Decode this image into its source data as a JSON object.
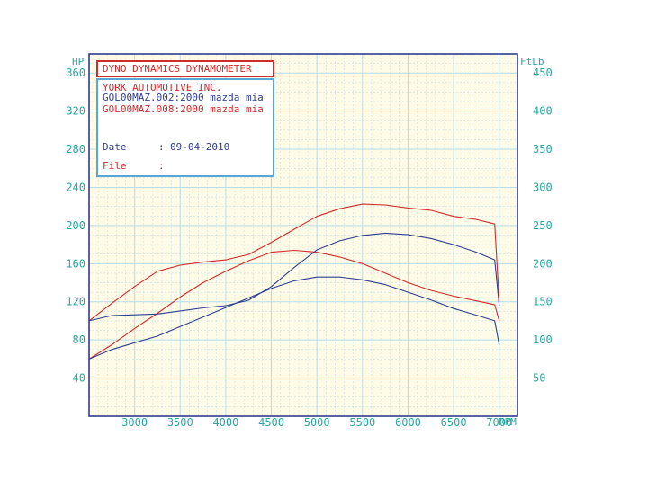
{
  "colors": {
    "background": "#ffffff",
    "plot_fill": "#fffbe6",
    "grid": "#b7dde8",
    "axis_text": "#2aa7a0",
    "frame": "#2e3d8f",
    "red": "#d22b2b",
    "blue": "#2e3d8f",
    "infobox_border": "#56a7d8"
  },
  "title_box": {
    "text": "DYNO DYNAMICS DYNAMOMETER"
  },
  "info_box": {
    "company": "YORK AUTOMOTIVE INC.",
    "run1": "GOL00MAZ.002:2000 mazda mia",
    "run2": "GOL00MAZ.008:2000 mazda mia",
    "date_label": "Date",
    "date_sep": ":",
    "date_value": "09-04-2010",
    "file_label": "File",
    "file_sep": ":"
  },
  "chart_data": {
    "type": "line",
    "x_unit_label": "RPM",
    "y_left_label": "HP",
    "y_right_label": "FtLb",
    "xlim": [
      2500,
      7200
    ],
    "y_left_lim": [
      0,
      380
    ],
    "y_right_lim": [
      0,
      475
    ],
    "x_ticks": [
      3000,
      3500,
      4000,
      4500,
      5000,
      5500,
      6000,
      6500,
      7000
    ],
    "y_left_ticks": [
      40,
      80,
      120,
      160,
      200,
      240,
      280,
      320,
      360
    ],
    "y_right_ticks": [
      50,
      100,
      150,
      200,
      250,
      300,
      350,
      400,
      450
    ],
    "grid": true,
    "series": [
      {
        "name": "GOL00MAZ.008:2000 mazda mia",
        "measure": "power",
        "axis": "left",
        "color": "#d22b2b",
        "x": [
          2500,
          2750,
          3000,
          3250,
          3500,
          3750,
          4000,
          4250,
          4500,
          4750,
          5000,
          5250,
          5500,
          5750,
          6000,
          6250,
          6500,
          6750,
          6950,
          7000
        ],
        "y": [
          60,
          75,
          92,
          108,
          125,
          140,
          152,
          163,
          172,
          174,
          172,
          167,
          160,
          150,
          140,
          132,
          126,
          121,
          117,
          100
        ]
      },
      {
        "name": "GOL00MAZ.008:2000 mazda mia",
        "measure": "torque",
        "axis": "right",
        "color": "#d22b2b",
        "x": [
          2500,
          2750,
          3000,
          3250,
          3500,
          3750,
          4000,
          4250,
          4500,
          4750,
          5000,
          5250,
          5500,
          5750,
          6000,
          6250,
          6500,
          6750,
          6950,
          7000
        ],
        "y": [
          125,
          148,
          170,
          190,
          198,
          202,
          205,
          212,
          228,
          245,
          262,
          272,
          278,
          277,
          273,
          270,
          262,
          258,
          252,
          150
        ]
      },
      {
        "name": "GOL00MAZ.002:2000 mazda mia",
        "measure": "power",
        "axis": "left",
        "color": "#2e3d8f",
        "x": [
          2500,
          2750,
          3000,
          3250,
          3500,
          3750,
          4000,
          4250,
          4500,
          4750,
          5000,
          5250,
          5500,
          5750,
          6000,
          6250,
          6500,
          6750,
          6950,
          7000
        ],
        "y": [
          60,
          70,
          77,
          84,
          94,
          104,
          114,
          124,
          134,
          142,
          146,
          146,
          143,
          138,
          130,
          122,
          113,
          106,
          100,
          75
        ]
      },
      {
        "name": "GOL00MAZ.002:2000 mazda mia",
        "measure": "torque",
        "axis": "right",
        "color": "#2e3d8f",
        "x": [
          2500,
          2750,
          3000,
          3250,
          3500,
          3750,
          4000,
          4250,
          4500,
          4750,
          5000,
          5250,
          5500,
          5750,
          6000,
          6250,
          6500,
          6750,
          6950,
          7000
        ],
        "y": [
          125,
          132,
          133,
          134,
          138,
          142,
          145,
          152,
          170,
          195,
          218,
          230,
          237,
          240,
          238,
          233,
          225,
          215,
          205,
          145
        ]
      }
    ]
  }
}
